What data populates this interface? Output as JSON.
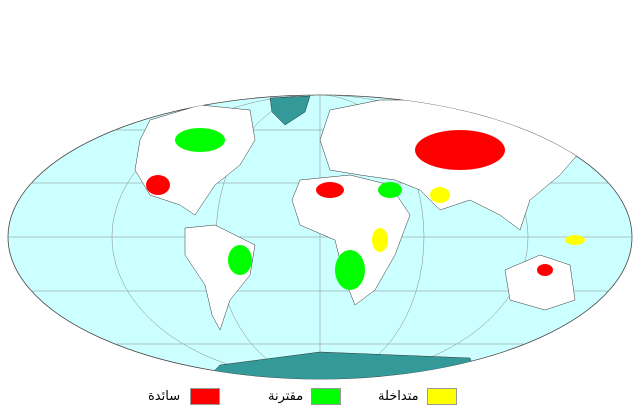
{
  "legend": [
    {
      "label": "سائدة",
      "color": "#ff0000"
    },
    {
      "label": "مقترنة",
      "color": "#00ff00"
    },
    {
      "label": "متداخلة",
      "color": "#ffff00"
    }
  ],
  "map": {
    "ocean_color": "#ccffff",
    "land_color": "#ffffff",
    "ice_color": "#339999",
    "projection": "mollweide"
  }
}
